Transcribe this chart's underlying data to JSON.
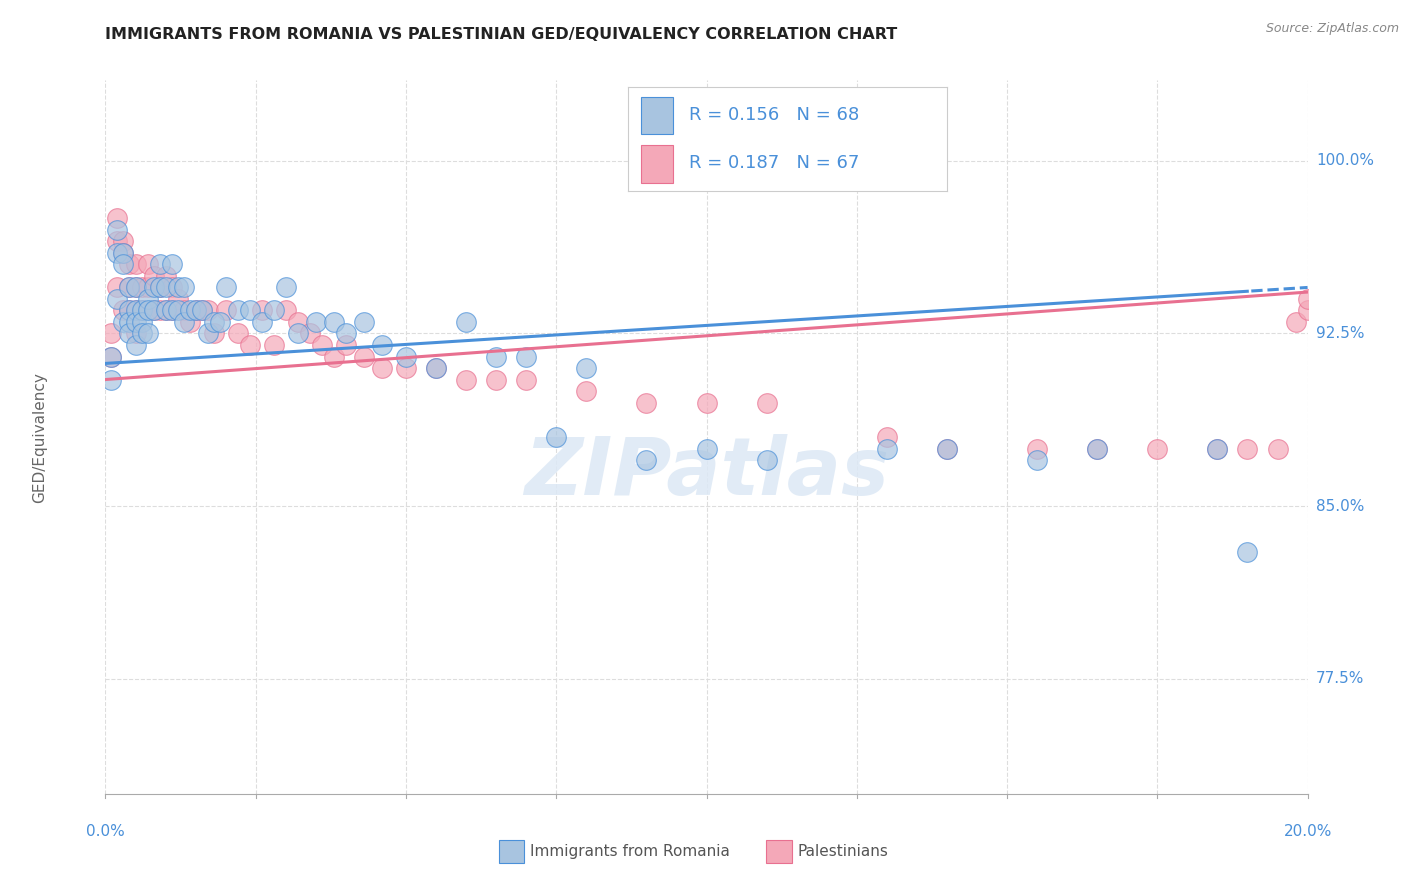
{
  "title": "IMMIGRANTS FROM ROMANIA VS PALESTINIAN GED/EQUIVALENCY CORRELATION CHART",
  "source": "Source: ZipAtlas.com",
  "ylabel": "GED/Equivalency",
  "ytick_labels": [
    "77.5%",
    "85.0%",
    "92.5%",
    "100.0%"
  ],
  "ytick_values": [
    0.775,
    0.85,
    0.925,
    1.0
  ],
  "xlim": [
    0.0,
    0.2
  ],
  "ylim": [
    0.725,
    1.035
  ],
  "legend_label1": "Immigrants from Romania",
  "legend_label2": "Palestinians",
  "R1": "0.156",
  "N1": "68",
  "R2": "0.187",
  "N2": "67",
  "color_romania": "#a8c4e0",
  "color_palestinian": "#f4a8b8",
  "color_romania_line": "#4a90d9",
  "color_palestinian_line": "#e87090",
  "color_axis_label": "#4a90d9",
  "romania_x": [
    0.001,
    0.001,
    0.002,
    0.002,
    0.002,
    0.003,
    0.003,
    0.003,
    0.004,
    0.004,
    0.004,
    0.004,
    0.005,
    0.005,
    0.005,
    0.005,
    0.006,
    0.006,
    0.006,
    0.007,
    0.007,
    0.007,
    0.008,
    0.008,
    0.009,
    0.009,
    0.01,
    0.01,
    0.011,
    0.011,
    0.012,
    0.012,
    0.013,
    0.013,
    0.014,
    0.015,
    0.016,
    0.017,
    0.018,
    0.019,
    0.02,
    0.022,
    0.024,
    0.026,
    0.028,
    0.03,
    0.032,
    0.035,
    0.038,
    0.04,
    0.043,
    0.046,
    0.05,
    0.055,
    0.06,
    0.065,
    0.07,
    0.075,
    0.08,
    0.09,
    0.1,
    0.11,
    0.13,
    0.14,
    0.155,
    0.165,
    0.185,
    0.19
  ],
  "romania_y": [
    0.915,
    0.905,
    0.97,
    0.96,
    0.94,
    0.96,
    0.955,
    0.93,
    0.945,
    0.935,
    0.93,
    0.925,
    0.945,
    0.935,
    0.93,
    0.92,
    0.935,
    0.93,
    0.925,
    0.94,
    0.935,
    0.925,
    0.945,
    0.935,
    0.955,
    0.945,
    0.945,
    0.935,
    0.955,
    0.935,
    0.945,
    0.935,
    0.945,
    0.93,
    0.935,
    0.935,
    0.935,
    0.925,
    0.93,
    0.93,
    0.945,
    0.935,
    0.935,
    0.93,
    0.935,
    0.945,
    0.925,
    0.93,
    0.93,
    0.925,
    0.93,
    0.92,
    0.915,
    0.91,
    0.93,
    0.915,
    0.915,
    0.88,
    0.91,
    0.87,
    0.875,
    0.87,
    0.875,
    0.875,
    0.87,
    0.875,
    0.875,
    0.83
  ],
  "palestinian_x": [
    0.001,
    0.001,
    0.002,
    0.002,
    0.002,
    0.003,
    0.003,
    0.003,
    0.004,
    0.004,
    0.004,
    0.005,
    0.005,
    0.005,
    0.005,
    0.006,
    0.006,
    0.007,
    0.007,
    0.008,
    0.008,
    0.009,
    0.009,
    0.01,
    0.01,
    0.011,
    0.011,
    0.012,
    0.013,
    0.014,
    0.015,
    0.016,
    0.017,
    0.018,
    0.02,
    0.022,
    0.024,
    0.026,
    0.028,
    0.03,
    0.032,
    0.034,
    0.036,
    0.038,
    0.04,
    0.043,
    0.046,
    0.05,
    0.055,
    0.06,
    0.065,
    0.07,
    0.08,
    0.09,
    0.1,
    0.11,
    0.13,
    0.14,
    0.155,
    0.165,
    0.175,
    0.185,
    0.19,
    0.195,
    0.198,
    0.2,
    0.2
  ],
  "palestinian_y": [
    0.925,
    0.915,
    0.975,
    0.965,
    0.945,
    0.965,
    0.96,
    0.935,
    0.955,
    0.945,
    0.935,
    0.955,
    0.945,
    0.935,
    0.925,
    0.945,
    0.935,
    0.955,
    0.945,
    0.95,
    0.935,
    0.945,
    0.935,
    0.95,
    0.935,
    0.945,
    0.935,
    0.94,
    0.935,
    0.93,
    0.935,
    0.935,
    0.935,
    0.925,
    0.935,
    0.925,
    0.92,
    0.935,
    0.92,
    0.935,
    0.93,
    0.925,
    0.92,
    0.915,
    0.92,
    0.915,
    0.91,
    0.91,
    0.91,
    0.905,
    0.905,
    0.905,
    0.9,
    0.895,
    0.895,
    0.895,
    0.88,
    0.875,
    0.875,
    0.875,
    0.875,
    0.875,
    0.875,
    0.875,
    0.93,
    0.935,
    0.94
  ],
  "grid_color": "#dddddd",
  "grid_linestyle": "--"
}
